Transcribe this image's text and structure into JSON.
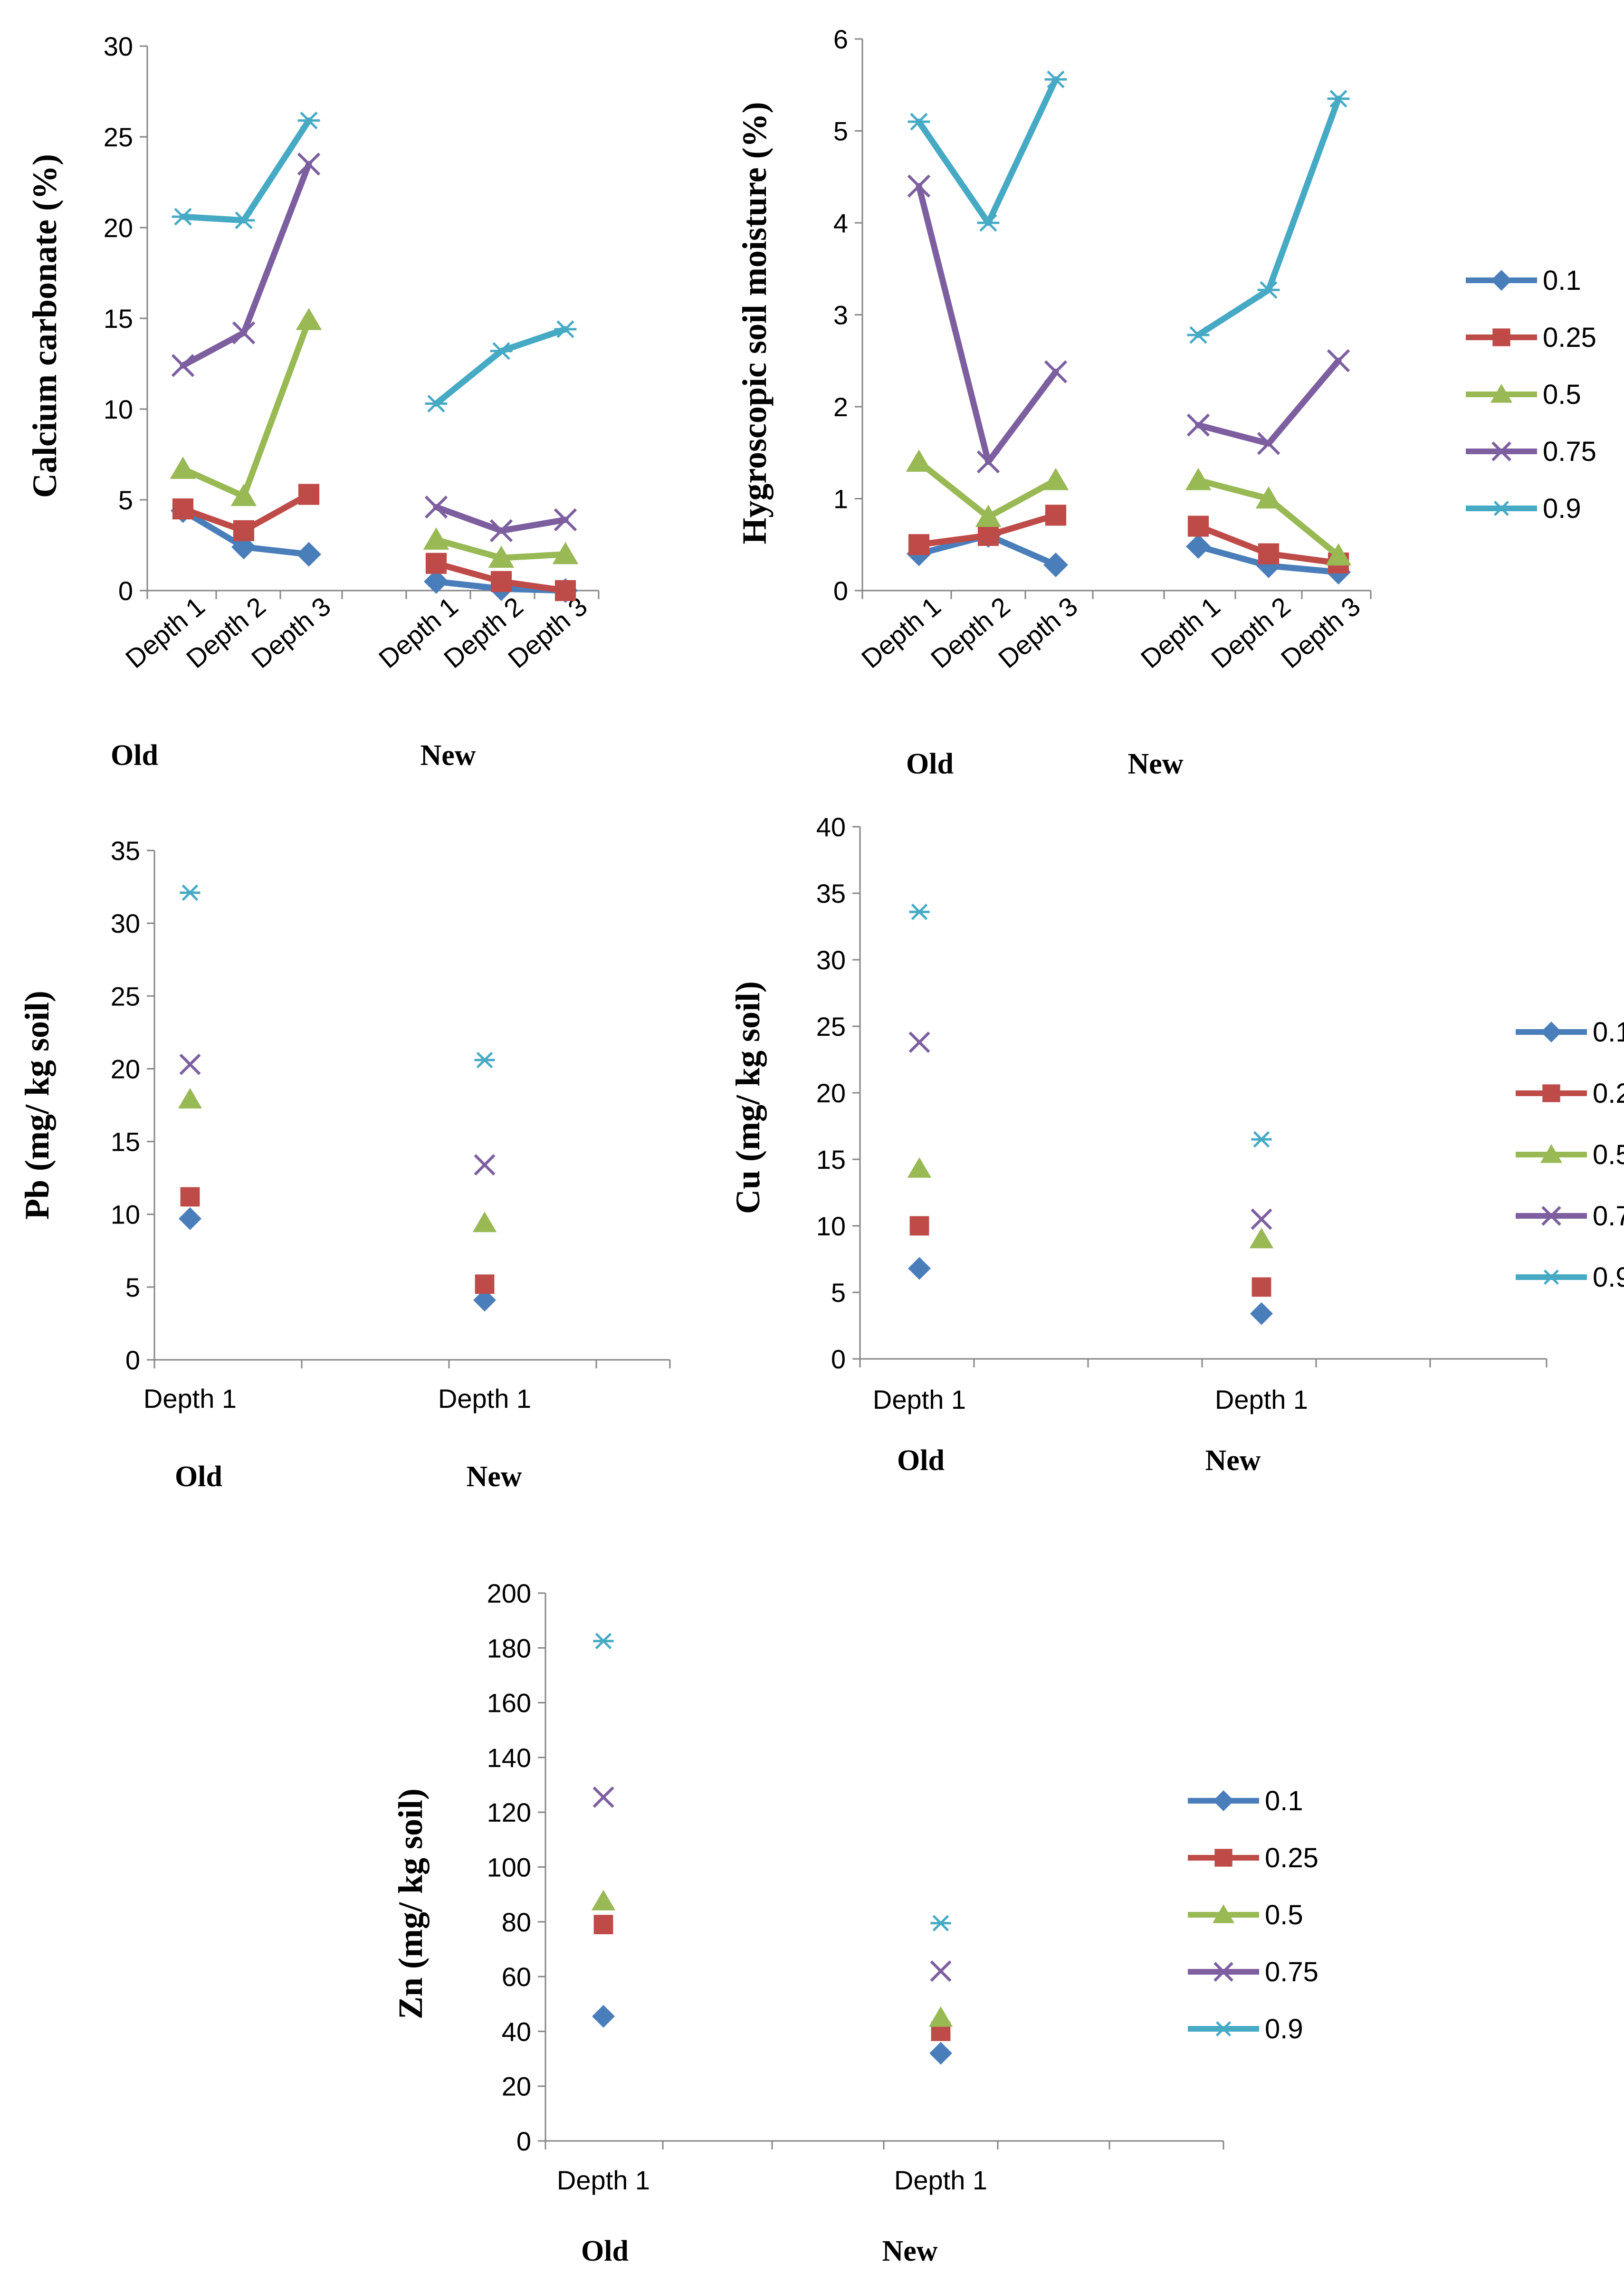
{
  "colors": {
    "0.1": "#4a7ebb",
    "0.25": "#be4b48",
    "0.5": "#98b954",
    "0.75": "#7d5fa0",
    "0.9": "#46aac5"
  },
  "legend": [
    "0.1",
    "0.25",
    "0.5",
    "0.75",
    "0.9"
  ],
  "chart_data": [
    {
      "type": "line",
      "ylabel": "Calcium carbonate (%)",
      "ylim": [
        0,
        30
      ],
      "yticks": [
        "0",
        "5",
        "10",
        "15",
        "20",
        "25",
        "30"
      ],
      "categories": [
        "Depth 1",
        "Depth 2",
        "Depth 3",
        "Depth 1",
        "Depth 2",
        "Depth 3"
      ],
      "groups": [
        "Old",
        "New"
      ],
      "series": [
        {
          "name": "0.1",
          "marker": "diamond",
          "values": [
            4.4,
            2.4,
            2.0,
            0.5,
            0.1,
            0.0
          ]
        },
        {
          "name": "0.25",
          "marker": "square",
          "values": [
            4.5,
            3.3,
            5.3,
            1.5,
            0.5,
            0.0
          ]
        },
        {
          "name": "0.5",
          "marker": "triangle",
          "values": [
            6.7,
            5.2,
            14.9,
            2.8,
            1.8,
            2.0
          ]
        },
        {
          "name": "0.75",
          "marker": "x",
          "values": [
            12.4,
            14.2,
            23.5,
            4.6,
            3.3,
            3.9
          ]
        },
        {
          "name": "0.9",
          "marker": "star",
          "values": [
            20.6,
            20.4,
            25.9,
            10.3,
            13.2,
            14.4
          ]
        }
      ]
    },
    {
      "type": "line",
      "ylabel": "Hygroscopic soil moisture (%)",
      "ylim": [
        0,
        6
      ],
      "yticks": [
        "0",
        "1",
        "2",
        "3",
        "4",
        "5",
        "6"
      ],
      "categories": [
        "Depth 1",
        "Depth 2",
        "Depth 3",
        "Depth 1",
        "Depth 2",
        "Depth 3"
      ],
      "groups": [
        "Old",
        "New"
      ],
      "series": [
        {
          "name": "0.1",
          "marker": "diamond",
          "values": [
            0.4,
            0.6,
            0.28,
            0.48,
            0.27,
            0.2
          ]
        },
        {
          "name": "0.25",
          "marker": "square",
          "values": [
            0.5,
            0.6,
            0.82,
            0.7,
            0.4,
            0.3
          ]
        },
        {
          "name": "0.5",
          "marker": "triangle",
          "values": [
            1.4,
            0.8,
            1.2,
            1.2,
            1.0,
            0.38
          ]
        },
        {
          "name": "0.75",
          "marker": "x",
          "values": [
            4.4,
            1.4,
            2.38,
            1.8,
            1.6,
            2.5
          ]
        },
        {
          "name": "0.9",
          "marker": "star",
          "values": [
            5.1,
            4.0,
            5.56,
            2.78,
            3.27,
            5.35
          ]
        }
      ]
    },
    {
      "type": "scatter",
      "ylabel": "Pb (mg/ kg soil)",
      "ylim": [
        0,
        35
      ],
      "yticks": [
        "0",
        "5",
        "10",
        "15",
        "20",
        "25",
        "30",
        "35"
      ],
      "categories": [
        "Depth 1",
        "Depth 1"
      ],
      "groups": [
        "Old",
        "New"
      ],
      "series": [
        {
          "name": "0.1",
          "marker": "diamond",
          "values": [
            9.7,
            4.1
          ]
        },
        {
          "name": "0.25",
          "marker": "square",
          "values": [
            11.2,
            5.2
          ]
        },
        {
          "name": "0.5",
          "marker": "triangle",
          "values": [
            17.9,
            9.4
          ]
        },
        {
          "name": "0.75",
          "marker": "x",
          "values": [
            20.3,
            13.4
          ]
        },
        {
          "name": "0.9",
          "marker": "star",
          "values": [
            32.1,
            20.6
          ]
        }
      ]
    },
    {
      "type": "scatter",
      "ylabel": "Cu (mg/ kg soil)",
      "ylim": [
        0,
        40
      ],
      "yticks": [
        "0",
        "5",
        "10",
        "15",
        "20",
        "25",
        "30",
        "35",
        "40"
      ],
      "categories": [
        "Depth 1",
        "Depth 1"
      ],
      "groups": [
        "Old",
        "New"
      ],
      "series": [
        {
          "name": "0.1",
          "marker": "diamond",
          "values": [
            6.8,
            3.4
          ]
        },
        {
          "name": "0.25",
          "marker": "square",
          "values": [
            10.0,
            5.4
          ]
        },
        {
          "name": "0.5",
          "marker": "triangle",
          "values": [
            14.3,
            9.0
          ]
        },
        {
          "name": "0.75",
          "marker": "x",
          "values": [
            23.8,
            10.5
          ]
        },
        {
          "name": "0.9",
          "marker": "star",
          "values": [
            33.6,
            16.5
          ]
        }
      ]
    },
    {
      "type": "scatter",
      "ylabel": "Zn (mg/ kg soil)",
      "ylim": [
        0,
        200
      ],
      "yticks": [
        "0",
        "20",
        "40",
        "60",
        "80",
        "100",
        "120",
        "140",
        "160",
        "180",
        "200"
      ],
      "categories": [
        "Depth 1",
        "Depth 1"
      ],
      "groups": [
        "Old",
        "New"
      ],
      "series": [
        {
          "name": "0.1",
          "marker": "diamond",
          "values": [
            45.5,
            32.0
          ]
        },
        {
          "name": "0.25",
          "marker": "square",
          "values": [
            79.0,
            40.0
          ]
        },
        {
          "name": "0.5",
          "marker": "triangle",
          "values": [
            87.5,
            45.0
          ]
        },
        {
          "name": "0.75",
          "marker": "x",
          "values": [
            125.5,
            62.0
          ]
        },
        {
          "name": "0.9",
          "marker": "star",
          "values": [
            182.5,
            79.5
          ]
        }
      ]
    }
  ]
}
